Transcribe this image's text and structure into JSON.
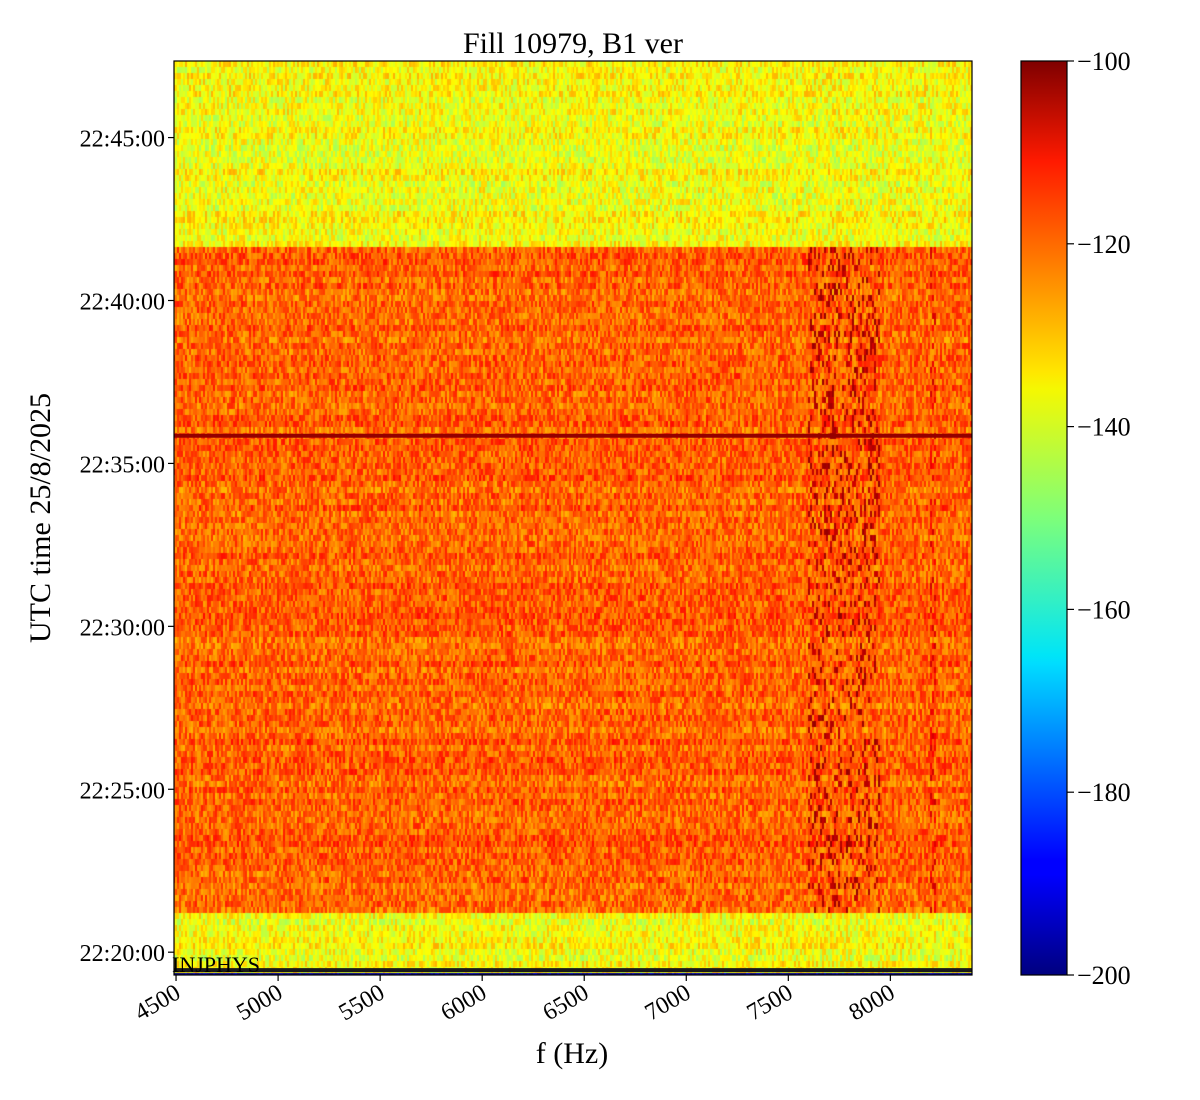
{
  "chart_data": {
    "type": "heatmap",
    "title": "Fill 10979, B1 ver",
    "xlabel": "f (Hz)",
    "ylabel": "UTC time 25/8/2025",
    "xlim": [
      4490,
      8400
    ],
    "x_ticks": [
      {
        "value": 4500,
        "label": "4500"
      },
      {
        "value": 5000,
        "label": "5000"
      },
      {
        "value": 5500,
        "label": "5500"
      },
      {
        "value": 6000,
        "label": "6000"
      },
      {
        "value": 6500,
        "label": "6500"
      },
      {
        "value": 7000,
        "label": "7000"
      },
      {
        "value": 7500,
        "label": "7500"
      },
      {
        "value": 8000,
        "label": "8000"
      }
    ],
    "ylim_minutes_after_2200": [
      19.3,
      47.35
    ],
    "y_ticks": [
      {
        "minutes": 20,
        "label": "22:20:00"
      },
      {
        "minutes": 25,
        "label": "22:25:00"
      },
      {
        "minutes": 30,
        "label": "22:30:00"
      },
      {
        "minutes": 35,
        "label": "22:35:00"
      },
      {
        "minutes": 40,
        "label": "22:40:00"
      },
      {
        "minutes": 45,
        "label": "22:45:00"
      }
    ],
    "colorbar": {
      "colormap": "jet",
      "range": [
        -200,
        -100
      ],
      "ticks": [
        {
          "value": -100,
          "label": "−100"
        },
        {
          "value": -120,
          "label": "−120"
        },
        {
          "value": -140,
          "label": "−140"
        },
        {
          "value": -160,
          "label": "−160"
        },
        {
          "value": -180,
          "label": "−180"
        },
        {
          "value": -200,
          "label": "−200"
        }
      ]
    },
    "regions": [
      {
        "from_minutes": 41.6,
        "to_minutes": 47.35,
        "level_db": -138
      },
      {
        "from_minutes": 21.2,
        "to_minutes": 41.6,
        "level_db": -122
      },
      {
        "from_minutes": 19.3,
        "to_minutes": 21.2,
        "level_db": -138
      }
    ],
    "lines": [
      {
        "at_minutes": 35.85,
        "level_db": -102
      },
      {
        "at_minutes": 19.45,
        "level_db": -150
      }
    ],
    "features": [
      {
        "f_from": 7600,
        "f_to": 7950,
        "from_minutes": 21.2,
        "to_minutes": 41.6,
        "level_db": -105
      },
      {
        "f_from": 8190,
        "f_to": 8220,
        "from_minutes": 21.2,
        "to_minutes": 41.6,
        "level_db": -110
      }
    ],
    "watermark": "INJPHYS"
  }
}
